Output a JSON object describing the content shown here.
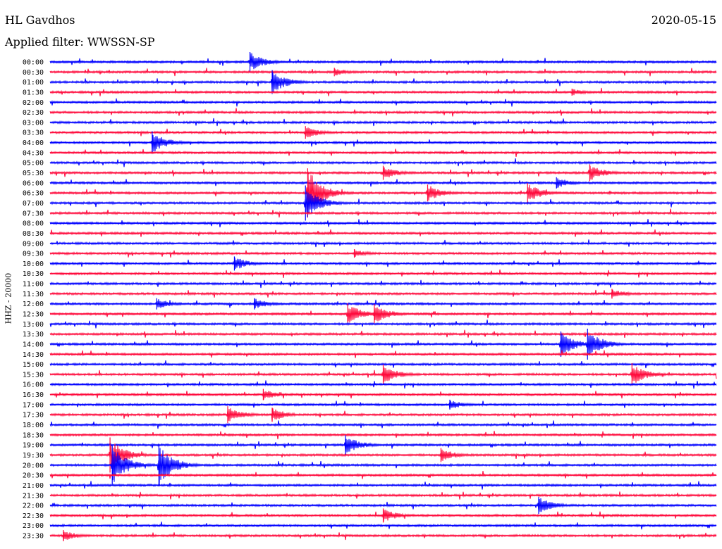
{
  "header": {
    "station": "HL Gavdhos",
    "date": "2020-05-15",
    "filter": "Applied filter: WWSSN-SP"
  },
  "channel_label": "HHZ - 20000",
  "colors": {
    "even": "#0000ff",
    "odd": "#ff0a3c"
  },
  "chart_data": {
    "type": "line",
    "title": "",
    "ylabel": "HHZ - 20000",
    "categories": [
      "00:00",
      "00:30",
      "01:00",
      "01:30",
      "02:00",
      "02:30",
      "03:00",
      "03:30",
      "04:00",
      "04:30",
      "05:00",
      "05:30",
      "06:00",
      "06:30",
      "07:00",
      "07:30",
      "08:00",
      "08:30",
      "09:00",
      "09:30",
      "10:00",
      "10:30",
      "11:00",
      "11:30",
      "12:00",
      "12:30",
      "13:00",
      "13:30",
      "14:00",
      "14:30",
      "15:00",
      "15:30",
      "16:00",
      "16:30",
      "17:00",
      "17:30",
      "18:00",
      "18:30",
      "19:00",
      "19:30",
      "20:00",
      "20:30",
      "21:00",
      "21:30",
      "22:00",
      "22:30",
      "23:00",
      "23:30"
    ],
    "trace_minutes": 30,
    "events": [
      {
        "trace": "00:00",
        "minute": 9.0,
        "amplitude": 14
      },
      {
        "trace": "00:30",
        "minute": 12.8,
        "amplitude": 6
      },
      {
        "trace": "01:00",
        "minute": 10.0,
        "amplitude": 17
      },
      {
        "trace": "01:30",
        "minute": 23.5,
        "amplitude": 5
      },
      {
        "trace": "03:30",
        "minute": 11.5,
        "amplitude": 9
      },
      {
        "trace": "04:00",
        "minute": 4.6,
        "amplitude": 16
      },
      {
        "trace": "05:30",
        "minute": 15.0,
        "amplitude": 10
      },
      {
        "trace": "05:30",
        "minute": 24.3,
        "amplitude": 12
      },
      {
        "trace": "06:00",
        "minute": 22.8,
        "amplitude": 8
      },
      {
        "trace": "06:30",
        "minute": 11.6,
        "amplitude": 35
      },
      {
        "trace": "06:30",
        "minute": 17.0,
        "amplitude": 12
      },
      {
        "trace": "06:30",
        "minute": 21.5,
        "amplitude": 14
      },
      {
        "trace": "07:00",
        "minute": 11.5,
        "amplitude": 25
      },
      {
        "trace": "09:30",
        "minute": 13.7,
        "amplitude": 6
      },
      {
        "trace": "10:00",
        "minute": 8.3,
        "amplitude": 10
      },
      {
        "trace": "11:30",
        "minute": 25.3,
        "amplitude": 7
      },
      {
        "trace": "12:00",
        "minute": 4.8,
        "amplitude": 8
      },
      {
        "trace": "12:00",
        "minute": 9.2,
        "amplitude": 8
      },
      {
        "trace": "12:30",
        "minute": 13.4,
        "amplitude": 15
      },
      {
        "trace": "12:30",
        "minute": 14.6,
        "amplitude": 14
      },
      {
        "trace": "14:00",
        "minute": 23.0,
        "amplitude": 18
      },
      {
        "trace": "14:00",
        "minute": 24.2,
        "amplitude": 22
      },
      {
        "trace": "15:30",
        "minute": 15.0,
        "amplitude": 14
      },
      {
        "trace": "15:30",
        "minute": 26.2,
        "amplitude": 16
      },
      {
        "trace": "16:30",
        "minute": 9.6,
        "amplitude": 8
      },
      {
        "trace": "17:00",
        "minute": 18.0,
        "amplitude": 7
      },
      {
        "trace": "17:30",
        "minute": 8.0,
        "amplitude": 12
      },
      {
        "trace": "17:30",
        "minute": 10.0,
        "amplitude": 10
      },
      {
        "trace": "19:00",
        "minute": 13.3,
        "amplitude": 14
      },
      {
        "trace": "19:30",
        "minute": 2.7,
        "amplitude": 25
      },
      {
        "trace": "19:30",
        "minute": 17.6,
        "amplitude": 10
      },
      {
        "trace": "20:00",
        "minute": 2.8,
        "amplitude": 28
      },
      {
        "trace": "20:00",
        "minute": 4.9,
        "amplitude": 30
      },
      {
        "trace": "22:00",
        "minute": 22.0,
        "amplitude": 12
      },
      {
        "trace": "22:30",
        "minute": 15.0,
        "amplitude": 10
      },
      {
        "trace": "23:30",
        "minute": 0.6,
        "amplitude": 8
      }
    ]
  }
}
